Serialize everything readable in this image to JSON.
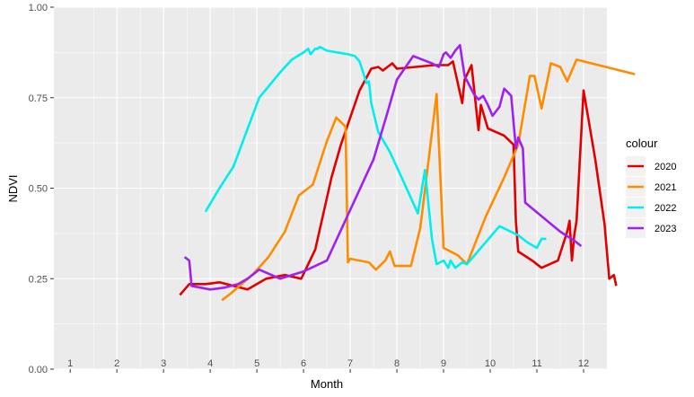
{
  "chart_data": {
    "type": "line",
    "xlabel": "Month",
    "ylabel": "NDVI",
    "xlim": [
      0.65,
      12.5
    ],
    "ylim": [
      0,
      1
    ],
    "y_ticks": [
      {
        "value": 0,
        "label": "0.00"
      },
      {
        "value": 0.25,
        "label": "0.25"
      },
      {
        "value": 0.5,
        "label": "0.50"
      },
      {
        "value": 0.75,
        "label": "0.75"
      },
      {
        "value": 1,
        "label": "1.00"
      }
    ],
    "month_labels": [
      "1",
      "2",
      "3",
      "4",
      "5",
      "6",
      "7",
      "8",
      "9",
      "10",
      "11",
      "12"
    ],
    "legend": {
      "title": "colour",
      "placement": "right"
    },
    "grid": true,
    "series": [
      {
        "name": "2020",
        "color": "#e00000",
        "points": [
          [
            3.35,
            0.205
          ],
          [
            3.55,
            0.235
          ],
          [
            3.9,
            0.235
          ],
          [
            4.2,
            0.24
          ],
          [
            4.8,
            0.22
          ],
          [
            5.2,
            0.25
          ],
          [
            5.6,
            0.26
          ],
          [
            5.95,
            0.25
          ],
          [
            6.25,
            0.33
          ],
          [
            6.6,
            0.53
          ],
          [
            6.8,
            0.62
          ],
          [
            7.2,
            0.77
          ],
          [
            7.45,
            0.83
          ],
          [
            7.6,
            0.835
          ],
          [
            7.7,
            0.825
          ],
          [
            7.9,
            0.845
          ],
          [
            8.0,
            0.83
          ],
          [
            8.4,
            0.835
          ],
          [
            8.8,
            0.84
          ],
          [
            9.1,
            0.84
          ],
          [
            9.2,
            0.85
          ],
          [
            9.4,
            0.735
          ],
          [
            9.45,
            0.8
          ],
          [
            9.6,
            0.84
          ],
          [
            9.75,
            0.66
          ],
          [
            9.8,
            0.73
          ],
          [
            9.95,
            0.665
          ],
          [
            10.3,
            0.645
          ],
          [
            10.5,
            0.62
          ],
          [
            10.55,
            0.41
          ],
          [
            10.6,
            0.325
          ],
          [
            10.9,
            0.3
          ],
          [
            11.1,
            0.28
          ],
          [
            11.45,
            0.3
          ],
          [
            11.65,
            0.38
          ],
          [
            11.7,
            0.41
          ],
          [
            11.75,
            0.3
          ],
          [
            11.8,
            0.37
          ],
          [
            11.85,
            0.41
          ],
          [
            12.0,
            0.77
          ],
          [
            12.25,
            0.58
          ],
          [
            12.45,
            0.4
          ],
          [
            12.55,
            0.25
          ],
          [
            12.65,
            0.26
          ],
          [
            12.7,
            0.23
          ]
        ]
      },
      {
        "name": "2021",
        "color": "#ff8c00",
        "points": [
          [
            4.25,
            0.19
          ],
          [
            4.45,
            0.21
          ],
          [
            4.9,
            0.26
          ],
          [
            5.25,
            0.31
          ],
          [
            5.6,
            0.38
          ],
          [
            5.9,
            0.48
          ],
          [
            6.2,
            0.51
          ],
          [
            6.5,
            0.63
          ],
          [
            6.7,
            0.695
          ],
          [
            6.9,
            0.67
          ],
          [
            6.95,
            0.295
          ],
          [
            7.0,
            0.305
          ],
          [
            7.4,
            0.295
          ],
          [
            7.55,
            0.275
          ],
          [
            7.75,
            0.3
          ],
          [
            7.85,
            0.325
          ],
          [
            7.95,
            0.285
          ],
          [
            8.3,
            0.285
          ],
          [
            8.5,
            0.39
          ],
          [
            8.7,
            0.6
          ],
          [
            8.85,
            0.76
          ],
          [
            9.0,
            0.335
          ],
          [
            9.3,
            0.315
          ],
          [
            9.5,
            0.29
          ],
          [
            9.9,
            0.42
          ],
          [
            10.3,
            0.53
          ],
          [
            10.6,
            0.62
          ],
          [
            10.85,
            0.81
          ],
          [
            10.95,
            0.81
          ],
          [
            11.1,
            0.72
          ],
          [
            11.3,
            0.845
          ],
          [
            11.5,
            0.835
          ],
          [
            11.65,
            0.795
          ],
          [
            11.85,
            0.855
          ],
          [
            13.1,
            0.815
          ]
        ]
      },
      {
        "name": "2022",
        "color": "#00eeee",
        "points": [
          [
            3.9,
            0.435
          ],
          [
            4.2,
            0.5
          ],
          [
            4.5,
            0.56
          ],
          [
            5.05,
            0.75
          ],
          [
            5.5,
            0.82
          ],
          [
            5.75,
            0.855
          ],
          [
            6.0,
            0.875
          ],
          [
            6.1,
            0.885
          ],
          [
            6.15,
            0.87
          ],
          [
            6.25,
            0.885
          ],
          [
            6.3,
            0.885
          ],
          [
            6.35,
            0.89
          ],
          [
            6.5,
            0.88
          ],
          [
            6.95,
            0.87
          ],
          [
            7.1,
            0.865
          ],
          [
            7.2,
            0.85
          ],
          [
            7.35,
            0.79
          ],
          [
            7.4,
            0.795
          ],
          [
            7.45,
            0.735
          ],
          [
            7.6,
            0.655
          ],
          [
            7.85,
            0.6
          ],
          [
            8.1,
            0.53
          ],
          [
            8.45,
            0.43
          ],
          [
            8.6,
            0.55
          ],
          [
            8.75,
            0.36
          ],
          [
            8.85,
            0.29
          ],
          [
            9.0,
            0.3
          ],
          [
            9.1,
            0.28
          ],
          [
            9.15,
            0.3
          ],
          [
            9.25,
            0.28
          ],
          [
            9.4,
            0.295
          ],
          [
            9.5,
            0.29
          ],
          [
            9.8,
            0.335
          ],
          [
            10.2,
            0.395
          ],
          [
            10.6,
            0.37
          ],
          [
            10.8,
            0.35
          ],
          [
            11.0,
            0.335
          ],
          [
            11.1,
            0.36
          ],
          [
            11.2,
            0.36
          ]
        ]
      },
      {
        "name": "2023",
        "color": "#a020f0",
        "points": [
          [
            3.45,
            0.31
          ],
          [
            3.55,
            0.3
          ],
          [
            3.6,
            0.23
          ],
          [
            4.0,
            0.22
          ],
          [
            4.3,
            0.225
          ],
          [
            4.6,
            0.235
          ],
          [
            4.8,
            0.25
          ],
          [
            5.05,
            0.275
          ],
          [
            5.5,
            0.25
          ],
          [
            6.0,
            0.27
          ],
          [
            6.5,
            0.3
          ],
          [
            7.5,
            0.58
          ],
          [
            7.8,
            0.71
          ],
          [
            8.0,
            0.8
          ],
          [
            8.35,
            0.865
          ],
          [
            8.75,
            0.845
          ],
          [
            8.9,
            0.835
          ],
          [
            9.0,
            0.87
          ],
          [
            9.05,
            0.875
          ],
          [
            9.15,
            0.86
          ],
          [
            9.25,
            0.88
          ],
          [
            9.35,
            0.895
          ],
          [
            9.45,
            0.81
          ],
          [
            9.55,
            0.785
          ],
          [
            9.65,
            0.76
          ],
          [
            9.75,
            0.745
          ],
          [
            9.85,
            0.755
          ],
          [
            9.95,
            0.73
          ],
          [
            10.05,
            0.7
          ],
          [
            10.2,
            0.725
          ],
          [
            10.3,
            0.775
          ],
          [
            10.45,
            0.755
          ],
          [
            10.55,
            0.61
          ],
          [
            10.6,
            0.64
          ],
          [
            10.7,
            0.61
          ],
          [
            10.75,
            0.46
          ],
          [
            11.5,
            0.38
          ],
          [
            11.8,
            0.355
          ],
          [
            11.95,
            0.34
          ]
        ]
      }
    ]
  }
}
